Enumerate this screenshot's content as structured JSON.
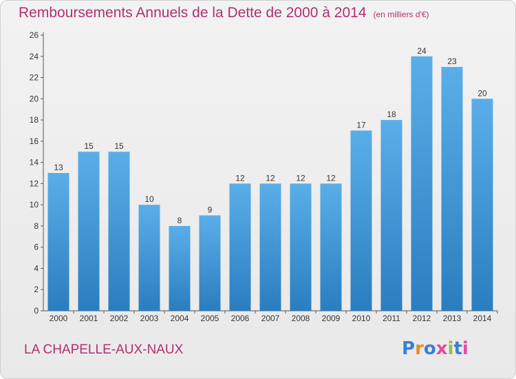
{
  "chart_data": {
    "type": "bar",
    "title": "Remboursements Annuels de la Dette de 2000 à 2014",
    "subtitle": "(en milliers d'€)",
    "xlabel": "",
    "ylabel": "",
    "categories": [
      "2000",
      "2001",
      "2002",
      "2003",
      "2004",
      "2005",
      "2006",
      "2007",
      "2008",
      "2009",
      "2010",
      "2011",
      "2012",
      "2013",
      "2014"
    ],
    "values": [
      13,
      15,
      15,
      10,
      8,
      9,
      12,
      12,
      12,
      12,
      17,
      18,
      24,
      23,
      20
    ],
    "ylim": [
      0,
      26
    ],
    "ytick_step": 2,
    "grid": false,
    "legend": "none"
  },
  "footer": {
    "location": "LA CHAPELLE-AUX-NAUX",
    "logo_text": "Proxiti"
  },
  "colors": {
    "title": "#b03070",
    "bar_light": "#5aaee8",
    "bar_dark": "#2a7ec0",
    "axis": "#555555",
    "logo": [
      "#3a7fd5",
      "#ee8a1a",
      "#3a7fd5",
      "#e84aa0",
      "#8cc63f",
      "#3a7fd5",
      "#e84aa0"
    ]
  }
}
